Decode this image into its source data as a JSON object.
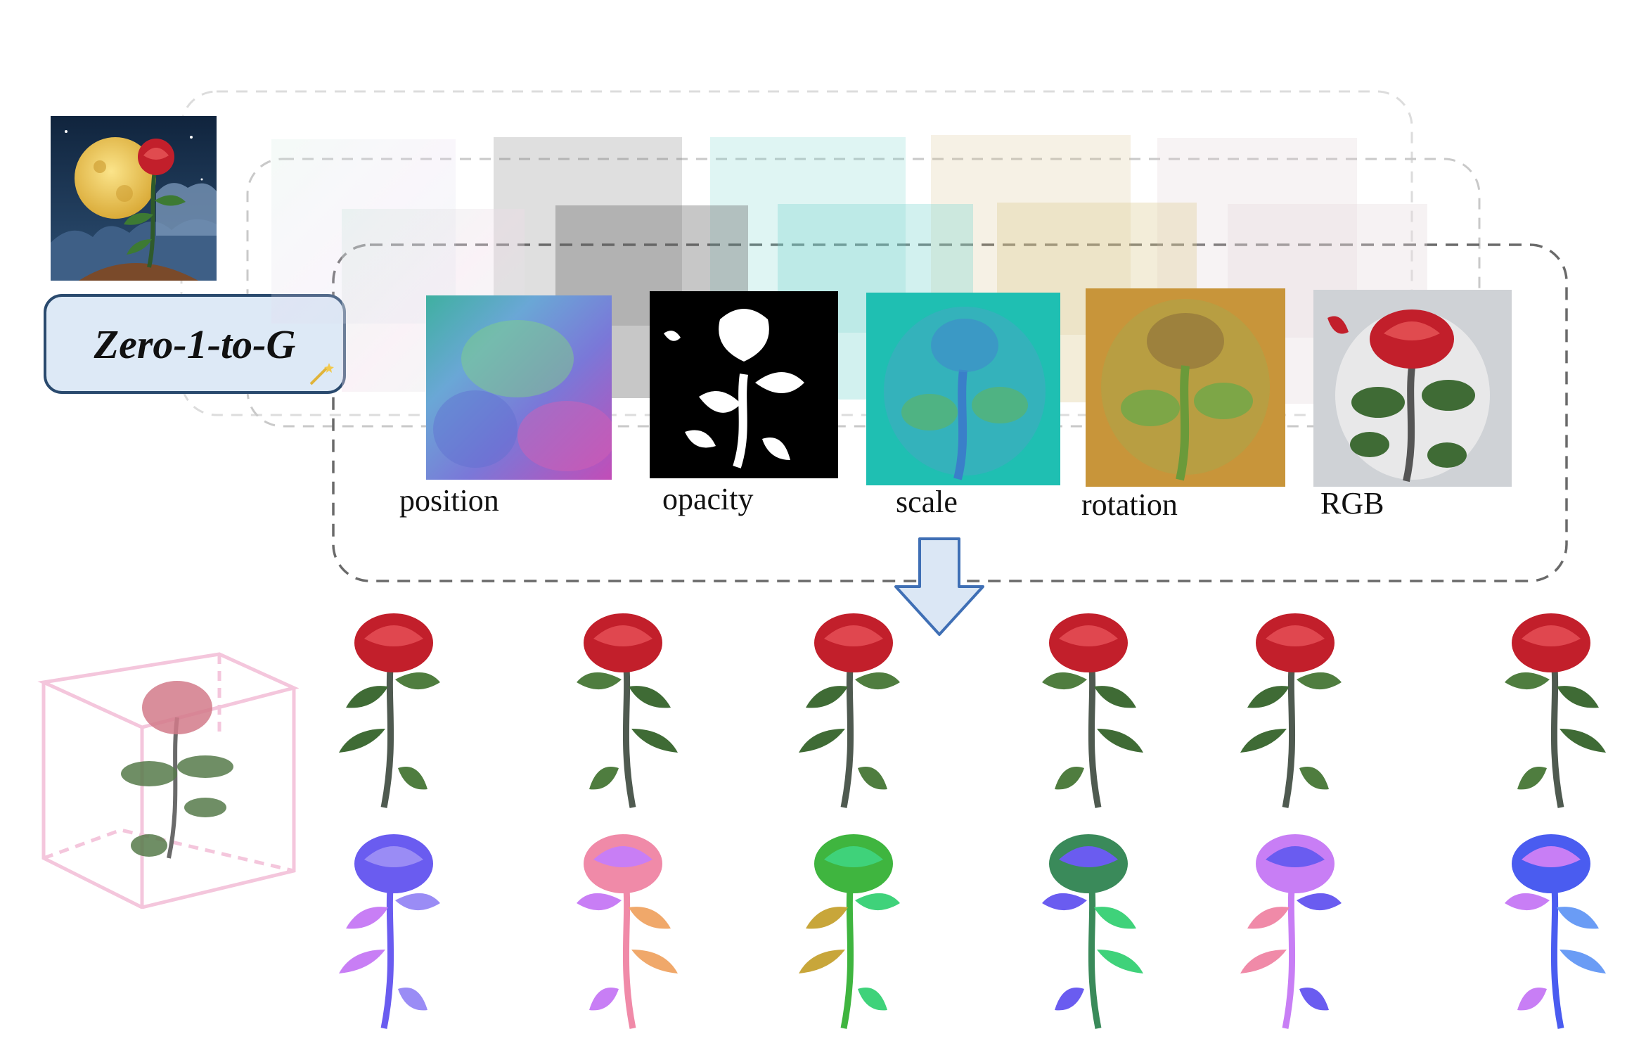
{
  "model": {
    "name": "Zero-1-to-G"
  },
  "attribute_maps": [
    {
      "label": "position"
    },
    {
      "label": "opacity"
    },
    {
      "label": "scale"
    },
    {
      "label": "rotation"
    },
    {
      "label": "RGB"
    }
  ],
  "icons": {
    "input": "moon-rose-illustration-icon",
    "wand": "magic-wand-icon",
    "arrow": "down-arrow-icon",
    "cube": "point-cloud-cube-icon"
  },
  "colors": {
    "model_box_fill": "#dde9f6",
    "model_box_border": "#2a4a6e",
    "arrow_fill": "#dbe7f5",
    "arrow_stroke": "#3f6fb5",
    "cube": "#f4c6dc",
    "rose_red": "#c21f2b",
    "leaf_green": "#3f6b35"
  }
}
